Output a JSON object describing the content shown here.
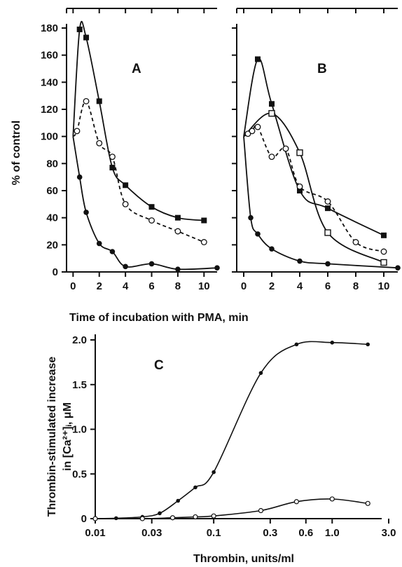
{
  "chart_data": [
    {
      "type": "line",
      "panel_label": "A",
      "xlabel": "Time of incubation with PMA, min",
      "ylabel": "% of control",
      "xlim": [
        -0.5,
        11
      ],
      "ylim": [
        0,
        180
      ],
      "x_ticks": [
        0,
        2,
        4,
        6,
        8,
        10
      ],
      "y_ticks": [
        0,
        20,
        40,
        60,
        80,
        100,
        120,
        140,
        160,
        180
      ],
      "grid": false,
      "series": [
        {
          "marker": "filled-square",
          "line": "solid",
          "x": [
            0,
            0.5,
            1,
            2,
            3,
            4,
            6,
            8,
            10
          ],
          "y": [
            100,
            179,
            173,
            126,
            77,
            64,
            48,
            40,
            38
          ]
        },
        {
          "marker": "open-circle",
          "line": "dashed",
          "x": [
            0,
            0.3,
            1,
            2,
            3,
            4,
            6,
            8,
            10
          ],
          "y": [
            100,
            104,
            126,
            95,
            85,
            50,
            38,
            30,
            22
          ]
        },
        {
          "marker": "filled-circle",
          "line": "solid",
          "x": [
            0,
            0.5,
            1,
            2,
            3,
            4,
            6,
            8,
            11
          ],
          "y": [
            100,
            70,
            44,
            21,
            15,
            4,
            6,
            2,
            3
          ]
        }
      ]
    },
    {
      "type": "line",
      "panel_label": "B",
      "xlabel": "Time of incubation with PMA, min",
      "xlim": [
        -0.5,
        11
      ],
      "ylim": [
        0,
        180
      ],
      "x_ticks": [
        0,
        2,
        4,
        6,
        8,
        10
      ],
      "grid": false,
      "series": [
        {
          "marker": "filled-square",
          "line": "solid",
          "x": [
            0,
            1,
            2,
            4,
            6,
            10
          ],
          "y": [
            100,
            157,
            124,
            60,
            47,
            27
          ]
        },
        {
          "marker": "open-square",
          "line": "solid",
          "x": [
            0,
            2,
            4,
            6,
            10
          ],
          "y": [
            100,
            117,
            88,
            29,
            7
          ]
        },
        {
          "marker": "open-circle",
          "line": "dashed",
          "x": [
            0,
            0.3,
            0.6,
            1,
            2,
            3,
            4,
            6,
            8,
            10
          ],
          "y": [
            100,
            102,
            104,
            107,
            85,
            91,
            63,
            52,
            22,
            15
          ]
        },
        {
          "marker": "filled-circle",
          "line": "solid",
          "x": [
            0,
            0.5,
            1,
            2,
            4,
            6,
            11
          ],
          "y": [
            100,
            40,
            28,
            17,
            8,
            6,
            3
          ]
        }
      ]
    },
    {
      "type": "line",
      "panel_label": "C",
      "xlabel": "Thrombin, units/ml",
      "ylabel_line1": "Thrombin-stimulated increase",
      "ylabel_line2": "in [Ca²⁺]ᵢ, μM",
      "x_scale": "log",
      "xlim": [
        0.01,
        3.0
      ],
      "ylim": [
        0,
        2.0
      ],
      "x_ticks": [
        0.01,
        0.03,
        0.1,
        0.3,
        0.6,
        1.0,
        3.0
      ],
      "x_tick_labels": [
        "0.01",
        "0.03",
        "0.1",
        "0.3",
        "0.6",
        "1.0",
        "3.0"
      ],
      "y_ticks": [
        0,
        0.5,
        1.0,
        1.5,
        2.0
      ],
      "y_tick_labels": [
        "0",
        "0.5",
        "1.0",
        "1.5",
        "2.0"
      ],
      "grid": false,
      "series": [
        {
          "marker": "filled-circle",
          "line": "solid",
          "x": [
            0.01,
            0.015,
            0.025,
            0.035,
            0.05,
            0.07,
            0.1,
            0.25,
            0.5,
            1.0,
            2.0
          ],
          "y": [
            0,
            0.005,
            0.02,
            0.06,
            0.2,
            0.35,
            0.52,
            1.63,
            1.95,
            1.97,
            1.95
          ]
        },
        {
          "marker": "open-circle",
          "line": "solid",
          "x": [
            0.01,
            0.025,
            0.045,
            0.07,
            0.1,
            0.25,
            0.5,
            1.0,
            2.0
          ],
          "y": [
            0,
            0,
            0.01,
            0.02,
            0.03,
            0.09,
            0.19,
            0.22,
            0.17
          ]
        }
      ]
    }
  ]
}
